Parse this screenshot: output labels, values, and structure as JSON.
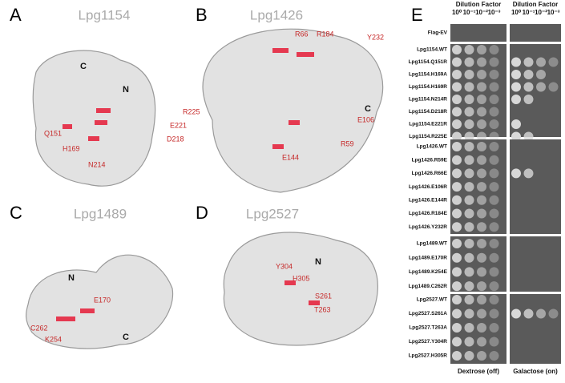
{
  "panels": [
    {
      "letter": "A",
      "title": "Lpg1154",
      "termini": [
        "C",
        "N"
      ],
      "residues": [
        "R225",
        "E221",
        "D218",
        "Q151",
        "H169",
        "N214"
      ]
    },
    {
      "letter": "B",
      "title": "Lpg1426",
      "termini": [
        "C"
      ],
      "residues": [
        "R66",
        "R184",
        "Y232",
        "E106",
        "R59",
        "E144"
      ]
    },
    {
      "letter": "C",
      "title": "Lpg1489",
      "termini": [
        "N",
        "C"
      ],
      "residues": [
        "E170",
        "C262",
        "K254"
      ]
    },
    {
      "letter": "D",
      "title": "Lpg2527",
      "termini": [
        "N"
      ],
      "residues": [
        "Y304",
        "H305",
        "S261",
        "T263"
      ]
    }
  ],
  "assay": {
    "letter": "E",
    "header": [
      "Dilution Factor",
      "Dilution Factor"
    ],
    "dilutions": [
      "10⁰",
      "10⁻¹",
      "10⁻²",
      "10⁻³"
    ],
    "footer": [
      "Dextrose (off)",
      "Galactose (on)"
    ],
    "groups": [
      [
        "Flag-EV"
      ],
      [
        "Lpg1154.WT",
        "Lpg1154.Q151R",
        "Lpg1154.H169A",
        "Lpg1154.H169R",
        "Lpg1154.N214R",
        "Lpg1154.D218R",
        "Lpg1154.E221R",
        "Lpg1154.R225E"
      ],
      [
        "Lpg1426.WT",
        "Lpg1426.R59E",
        "Lpg1426.R66E",
        "Lpg1426.E106R",
        "Lpg1426.E144R",
        "Lpg1426.R184E",
        "Lpg1426.Y232R"
      ],
      [
        "Lpg1489.WT",
        "Lpg1489.E170R",
        "Lpg1489.K254E",
        "Lpg1489.C262R"
      ],
      [
        "Lpg2527.WT",
        "Lpg2527.S261A",
        "Lpg2527.T263A",
        "Lpg2527.Y304R",
        "Lpg2527.H305R"
      ]
    ]
  }
}
